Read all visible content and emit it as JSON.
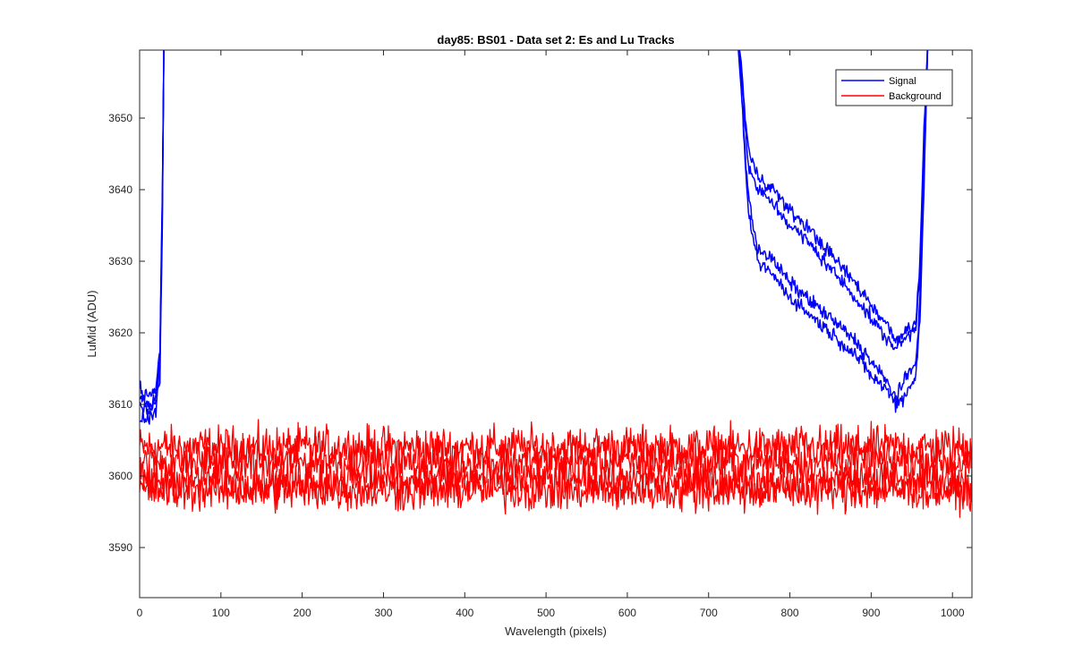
{
  "chart_data": {
    "type": "line",
    "title": "day85: BS01 - Data set 2: Es and Lu Tracks",
    "xlabel": "Wavelength (pixels)",
    "ylabel": "LuMid (ADU)",
    "xlim": [
      0,
      1024
    ],
    "ylim": [
      3583,
      3659.5
    ],
    "xticks": [
      0,
      100,
      200,
      300,
      400,
      500,
      600,
      700,
      800,
      900,
      1000
    ],
    "yticks": [
      3590,
      3600,
      3610,
      3620,
      3630,
      3640,
      3650
    ],
    "grid": false,
    "legend": {
      "placement": "top-right",
      "entries": [
        "Signal",
        "Background"
      ]
    },
    "colors": {
      "signal": "#0000ff",
      "background": "#ff0000",
      "axis": "#262626"
    },
    "signal_envelope": {
      "x": [
        0,
        10,
        20,
        25,
        28,
        30,
        735,
        740,
        745,
        750,
        760,
        780,
        800,
        820,
        850,
        880,
        900,
        920,
        930,
        940,
        950,
        955,
        960,
        965,
        970,
        1024
      ],
      "series": [
        {
          "values": [
            3612,
            3611,
            3612,
            3618,
            3640,
            3662,
            3662,
            3655,
            3645,
            3638,
            3632,
            3630,
            3627,
            3625,
            3622,
            3619,
            3616,
            3613,
            3611,
            3613,
            3615,
            3616,
            3625,
            3642,
            3662,
            3662
          ]
        },
        {
          "values": [
            3610,
            3609,
            3610,
            3616,
            3638,
            3662,
            3662,
            3658,
            3650,
            3645,
            3642,
            3640,
            3637,
            3635,
            3631,
            3627,
            3624,
            3621,
            3619,
            3620,
            3621,
            3622,
            3630,
            3648,
            3662,
            3662
          ]
        },
        {
          "values": [
            3608,
            3608,
            3609,
            3614,
            3636,
            3662,
            3662,
            3654,
            3643,
            3636,
            3630,
            3628,
            3625,
            3623,
            3620,
            3617,
            3614,
            3612,
            3610,
            3611,
            3613,
            3614,
            3622,
            3640,
            3662,
            3662
          ]
        },
        {
          "values": [
            3611,
            3610,
            3611,
            3617,
            3639,
            3662,
            3662,
            3657,
            3648,
            3643,
            3640,
            3638,
            3635,
            3633,
            3629,
            3625,
            3622,
            3619,
            3618,
            3619,
            3620,
            3621,
            3628,
            3646,
            3662,
            3662
          ]
        }
      ]
    },
    "background_envelope": {
      "x_range": [
        0,
        1024
      ],
      "series": [
        {
          "mean": 3604,
          "noise": 1.8
        },
        {
          "mean": 3602,
          "noise": 1.8
        },
        {
          "mean": 3599.5,
          "noise": 1.8
        },
        {
          "mean": 3598,
          "noise": 1.8
        }
      ]
    }
  }
}
